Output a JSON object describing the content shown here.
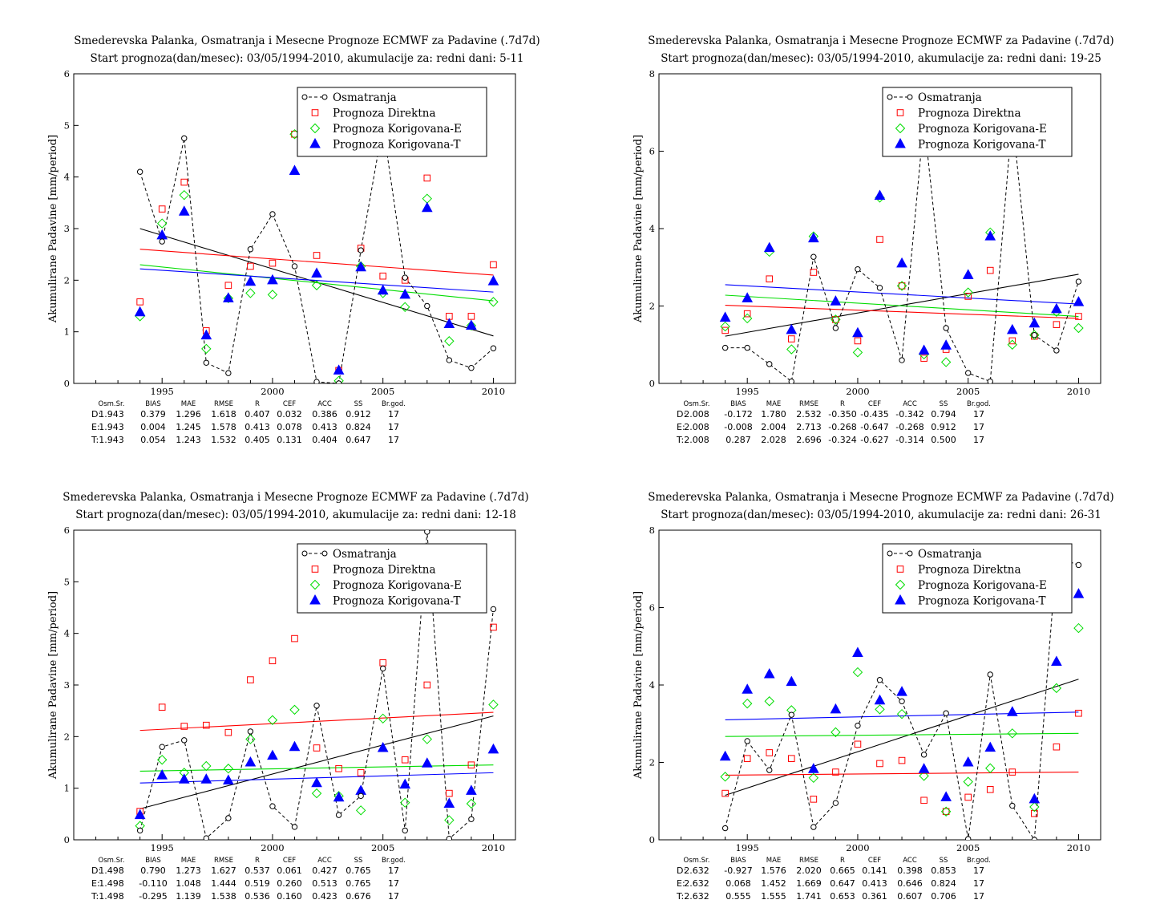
{
  "colors": {
    "obs": "#000000",
    "direct": "#ff0000",
    "korE": "#00dd00",
    "korT": "#0000ff"
  },
  "legend_labels": [
    "Osmatranja",
    "Prognoza Direktna",
    "Prognoza Korigovana-E",
    "Prognoza Korigovana-T"
  ],
  "ylabel": "Akumulirane Padavine [mm/period]",
  "stats_headers": [
    "Osm.Sr.",
    "BIAS",
    "MAE",
    "RMSE",
    "R",
    "CEF",
    "ACC",
    "SS",
    "Br.god."
  ],
  "chart_data": [
    {
      "type": "scatter",
      "title": "Smederevska Palanka, Osmatranja i Mesecne Prognoze ECMWF za Padavine (.7d7d)",
      "subtitle": "Start prognoza(dan/mesec): 03/05/1994-2010, akumulacije za: redni dani: 5-11",
      "xlim": [
        1991,
        2011
      ],
      "ylim": [
        0,
        6
      ],
      "xticks": [
        1995,
        2000,
        2005,
        2010
      ],
      "yticks": [
        0,
        1,
        2,
        3,
        4,
        5,
        6
      ],
      "years": [
        1994,
        1995,
        1996,
        1997,
        1998,
        1999,
        2000,
        2001,
        2002,
        2003,
        2004,
        2005,
        2006,
        2007,
        2008,
        2009,
        2010
      ],
      "series": [
        {
          "name": "Osmatranja",
          "values": [
            4.1,
            2.75,
            4.75,
            0.4,
            0.2,
            2.6,
            3.28,
            2.27,
            0.03,
            0.0,
            2.58,
            5.0,
            2.05,
            1.5,
            0.45,
            0.3,
            0.68
          ]
        },
        {
          "name": "Prognoza Direktna",
          "values": [
            1.58,
            3.38,
            3.9,
            1.02,
            1.9,
            2.27,
            2.33,
            4.83,
            2.48,
            0.25,
            2.62,
            2.08,
            2.0,
            3.98,
            1.3,
            1.3,
            2.3
          ]
        },
        {
          "name": "Prognoza Korigovana-E",
          "values": [
            1.3,
            3.1,
            3.65,
            0.67,
            1.65,
            1.75,
            1.72,
            4.83,
            1.9,
            0.05,
            2.27,
            1.75,
            1.48,
            3.58,
            0.82,
            1.12,
            1.58
          ]
        },
        {
          "name": "Prognoza Korigovana-T",
          "values": [
            1.38,
            2.87,
            3.33,
            0.93,
            1.65,
            1.97,
            2.0,
            4.12,
            2.13,
            0.25,
            2.25,
            1.8,
            1.72,
            3.4,
            1.15,
            1.12,
            1.98
          ]
        }
      ],
      "trends": [
        [
          3.0,
          0.92
        ],
        [
          2.6,
          2.1
        ],
        [
          2.3,
          1.6
        ],
        [
          2.22,
          1.77
        ]
      ],
      "stats": [
        {
          "label": "D:",
          "values": [
            "1.943",
            "0.379",
            "1.296",
            "1.618",
            "0.407",
            "0.032",
            "0.386",
            "0.912",
            "17"
          ]
        },
        {
          "label": "E:",
          "values": [
            "1.943",
            "0.004",
            "1.245",
            "1.578",
            "0.413",
            "0.078",
            "0.413",
            "0.824",
            "17"
          ]
        },
        {
          "label": "T:",
          "values": [
            "1.943",
            "0.054",
            "1.243",
            "1.532",
            "0.405",
            "0.131",
            "0.404",
            "0.647",
            "17"
          ]
        }
      ]
    },
    {
      "type": "scatter",
      "title": "Smederevska Palanka, Osmatranja i Mesecne Prognoze ECMWF za Padavine (.7d7d)",
      "subtitle": "Start prognoza(dan/mesec): 03/05/1994-2010, akumulacije za: redni dani: 19-25",
      "xlim": [
        1991,
        2011
      ],
      "ylim": [
        0,
        8
      ],
      "xticks": [
        1995,
        2000,
        2005,
        2010
      ],
      "yticks": [
        0,
        2,
        4,
        6,
        8
      ],
      "years": [
        1994,
        1995,
        1996,
        1997,
        1998,
        1999,
        2000,
        2001,
        2002,
        2003,
        2004,
        2005,
        2006,
        2007,
        2008,
        2009,
        2010
      ],
      "series": [
        {
          "name": "Osmatranja",
          "values": [
            0.92,
            0.92,
            0.5,
            0.05,
            3.27,
            1.43,
            2.95,
            2.47,
            0.6,
            6.8,
            1.43,
            0.27,
            0.05,
            6.9,
            1.25,
            0.85,
            2.63
          ]
        },
        {
          "name": "Prognoza Direktna",
          "values": [
            1.37,
            1.8,
            2.7,
            1.15,
            2.87,
            1.65,
            1.1,
            3.72,
            2.52,
            0.65,
            0.88,
            2.25,
            2.92,
            1.1,
            1.22,
            1.52,
            1.73
          ]
        },
        {
          "name": "Prognoza Korigovana-E",
          "values": [
            1.47,
            1.68,
            3.4,
            0.88,
            3.8,
            1.65,
            0.8,
            4.8,
            2.52,
            0.75,
            0.55,
            2.35,
            3.9,
            1.0,
            1.25,
            1.85,
            1.43
          ]
        },
        {
          "name": "Prognoza Korigovana-T",
          "values": [
            1.7,
            2.2,
            3.5,
            1.38,
            3.75,
            2.12,
            1.3,
            4.85,
            3.1,
            0.85,
            0.98,
            2.8,
            3.8,
            1.38,
            1.55,
            1.92,
            2.1
          ]
        }
      ],
      "trends": [
        [
          1.22,
          2.82
        ],
        [
          2.02,
          1.68
        ],
        [
          2.28,
          1.73
        ],
        [
          2.55,
          2.05
        ]
      ],
      "stats": [
        {
          "label": "D:",
          "values": [
            "2.008",
            "-0.172",
            "1.780",
            "2.532",
            "-0.350",
            "-0.435",
            "-0.342",
            "0.794",
            "17"
          ]
        },
        {
          "label": "E:",
          "values": [
            "2.008",
            "-0.008",
            "2.004",
            "2.713",
            "-0.268",
            "-0.647",
            "-0.268",
            "0.912",
            "17"
          ]
        },
        {
          "label": "T:",
          "values": [
            "2.008",
            "0.287",
            "2.028",
            "2.696",
            "-0.324",
            "-0.627",
            "-0.314",
            "0.500",
            "17"
          ]
        }
      ]
    },
    {
      "type": "scatter",
      "title": "Smederevska Palanka, Osmatranja i Mesecne Prognoze ECMWF za Padavine (.7d7d)",
      "subtitle": "Start prognoza(dan/mesec): 03/05/1994-2010, akumulacije za: redni dani: 12-18",
      "xlim": [
        1991,
        2011
      ],
      "ylim": [
        0,
        6
      ],
      "xticks": [
        1995,
        2000,
        2005,
        2010
      ],
      "yticks": [
        0,
        1,
        2,
        3,
        4,
        5,
        6
      ],
      "years": [
        1994,
        1995,
        1996,
        1997,
        1998,
        1999,
        2000,
        2001,
        2002,
        2003,
        2004,
        2005,
        2006,
        2007,
        2008,
        2009,
        2010
      ],
      "series": [
        {
          "name": "Osmatranja",
          "values": [
            0.18,
            1.8,
            1.93,
            0.03,
            0.42,
            2.1,
            0.65,
            0.25,
            2.6,
            0.48,
            0.85,
            3.32,
            0.18,
            5.97,
            0.02,
            0.4,
            4.47
          ]
        },
        {
          "name": "Prognoza Direktna",
          "values": [
            0.55,
            2.57,
            2.2,
            2.22,
            2.08,
            3.1,
            3.47,
            3.9,
            1.78,
            1.38,
            1.3,
            3.43,
            1.55,
            3.0,
            0.9,
            1.45,
            4.12
          ]
        },
        {
          "name": "Prognoza Korigovana-E",
          "values": [
            0.27,
            1.55,
            1.3,
            1.43,
            1.38,
            1.95,
            2.32,
            2.52,
            0.9,
            0.85,
            0.57,
            2.35,
            0.72,
            1.95,
            0.38,
            0.7,
            2.62
          ]
        },
        {
          "name": "Prognoza Korigovana-T",
          "values": [
            0.48,
            1.25,
            1.17,
            1.17,
            1.15,
            1.5,
            1.63,
            1.8,
            1.1,
            0.82,
            0.95,
            1.78,
            1.07,
            1.48,
            0.7,
            0.95,
            1.75
          ]
        }
      ],
      "trends": [
        [
          0.6,
          2.4
        ],
        [
          2.12,
          2.47
        ],
        [
          1.33,
          1.45
        ],
        [
          1.1,
          1.3
        ]
      ],
      "stats": [
        {
          "label": "D:",
          "values": [
            "1.498",
            "0.790",
            "1.273",
            "1.627",
            "0.537",
            "0.061",
            "0.427",
            "0.765",
            "17"
          ]
        },
        {
          "label": "E:",
          "values": [
            "1.498",
            "-0.110",
            "1.048",
            "1.444",
            "0.519",
            "0.260",
            "0.513",
            "0.765",
            "17"
          ]
        },
        {
          "label": "T:",
          "values": [
            "1.498",
            "-0.295",
            "1.139",
            "1.538",
            "0.536",
            "0.160",
            "0.423",
            "0.676",
            "17"
          ]
        }
      ]
    },
    {
      "type": "scatter",
      "title": "Smederevska Palanka, Osmatranja i Mesecne Prognoze ECMWF za Padavine (.7d7d)",
      "subtitle": "Start prognoza(dan/mesec): 03/05/1994-2010, akumulacije za: redni dani: 26-31",
      "xlim": [
        1991,
        2011
      ],
      "ylim": [
        0,
        8
      ],
      "xticks": [
        1995,
        2000,
        2005,
        2010
      ],
      "yticks": [
        0,
        2,
        4,
        6,
        8
      ],
      "years": [
        1994,
        1995,
        1996,
        1997,
        1998,
        1999,
        2000,
        2001,
        2002,
        2003,
        2004,
        2005,
        2006,
        2007,
        2008,
        2009,
        2010
      ],
      "series": [
        {
          "name": "Osmatranja",
          "values": [
            0.3,
            2.55,
            1.8,
            3.23,
            0.33,
            0.95,
            2.95,
            4.13,
            3.58,
            2.2,
            3.27,
            0.02,
            4.27,
            0.88,
            0.0,
            7.3,
            7.1
          ]
        },
        {
          "name": "Prognoza Direktna",
          "values": [
            1.2,
            2.1,
            2.25,
            2.1,
            1.05,
            1.75,
            2.47,
            1.97,
            2.05,
            1.02,
            0.73,
            1.1,
            1.3,
            1.75,
            0.68,
            2.4,
            3.27
          ]
        },
        {
          "name": "Prognoza Korigovana-E",
          "values": [
            1.63,
            3.52,
            3.58,
            3.35,
            1.6,
            2.78,
            4.33,
            3.37,
            3.25,
            1.65,
            0.73,
            1.5,
            1.85,
            2.75,
            0.85,
            3.92,
            5.47
          ]
        },
        {
          "name": "Prognoza Korigovana-T",
          "values": [
            2.15,
            3.88,
            4.28,
            4.08,
            1.83,
            3.37,
            4.83,
            3.6,
            3.82,
            1.83,
            1.1,
            2.0,
            2.38,
            3.3,
            1.05,
            4.6,
            6.35
          ]
        }
      ],
      "trends": [
        [
          1.15,
          4.15
        ],
        [
          1.67,
          1.75
        ],
        [
          2.67,
          2.75
        ],
        [
          3.1,
          3.3
        ]
      ],
      "stats": [
        {
          "label": "D:",
          "values": [
            "2.632",
            "-0.927",
            "1.576",
            "2.020",
            "0.665",
            "0.141",
            "0.398",
            "0.853",
            "17"
          ]
        },
        {
          "label": "E:",
          "values": [
            "2.632",
            "0.068",
            "1.452",
            "1.669",
            "0.647",
            "0.413",
            "0.646",
            "0.824",
            "17"
          ]
        },
        {
          "label": "T:",
          "values": [
            "2.632",
            "0.555",
            "1.555",
            "1.741",
            "0.653",
            "0.361",
            "0.607",
            "0.706",
            "17"
          ]
        }
      ]
    }
  ]
}
